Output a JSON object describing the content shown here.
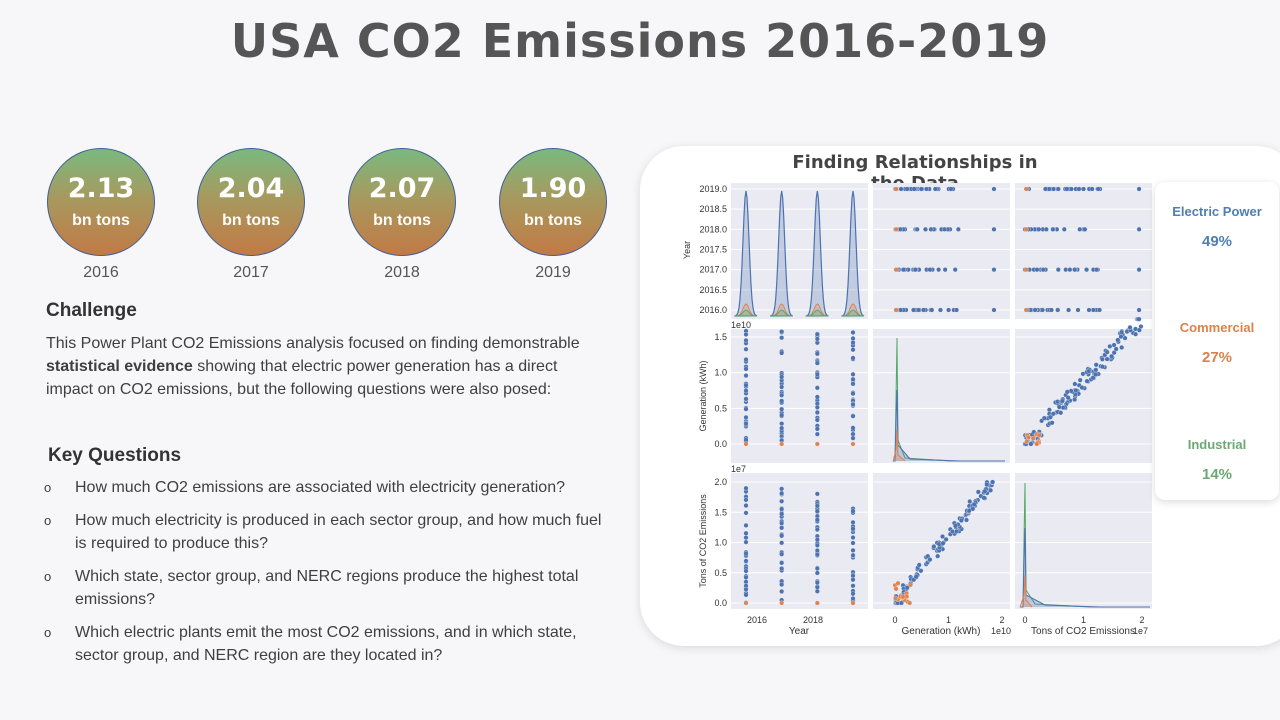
{
  "title": "USA CO2 Emissions 2016-2019",
  "stats": [
    {
      "value": "2.13",
      "unit": "bn tons",
      "year": "2016"
    },
    {
      "value": "2.04",
      "unit": "bn tons",
      "year": "2017"
    },
    {
      "value": "2.07",
      "unit": "bn tons",
      "year": "2018"
    },
    {
      "value": "1.90",
      "unit": "bn tons",
      "year": "2019"
    }
  ],
  "challenge": {
    "heading": "Challenge",
    "text_before": "This Power Plant CO2 Emissions analysis focused on finding demonstrable ",
    "text_bold": "statistical evidence",
    "text_after": " showing that electric power generation has a direct impact on CO2 emissions, but the following questions were also posed:"
  },
  "key_questions": {
    "heading": "Key Questions",
    "bullet": "o",
    "items": [
      "How much CO2 emissions are associated with electricity generation?",
      "How much electricity is produced in each sector group, and how much fuel is required to produce this?",
      "Which state, sector group, and NERC regions produce the highest total emissions?",
      "Which electric plants emit the most CO2 emissions, and in which state, sector group, and NERC region are they located in?"
    ]
  },
  "legend": [
    {
      "name": "Electric Power",
      "pct": "49%",
      "color": "#4c72b0"
    },
    {
      "name": "Commercial",
      "pct": "27%",
      "color": "#dd8452"
    },
    {
      "name": "Industrial",
      "pct": "14%",
      "color": "#55a868"
    }
  ],
  "chart_data": {
    "type": "scatter",
    "title": "Finding Relationships in the Data",
    "variables": [
      "Year",
      "Generation (kWh)",
      "Tons of CO2 Emissions"
    ],
    "series": [
      {
        "name": "Electric Power",
        "color": "#4c72b0"
      },
      {
        "name": "Commercial",
        "color": "#dd8452"
      },
      {
        "name": "Industrial",
        "color": "#55a868"
      }
    ],
    "year_ticks": [
      "2016.0",
      "2016.5",
      "2017.0",
      "2017.5",
      "2018.0",
      "2018.5",
      "2019.0"
    ],
    "year_axis_ticks": [
      "2016",
      "2018"
    ],
    "generation_ticks": [
      "0.0",
      "0.5",
      "1.0",
      "1.5"
    ],
    "generation_axis_ticks": [
      "0",
      "1",
      "2"
    ],
    "emission_ticks": [
      "0.0",
      "0.5",
      "1.0",
      "1.5",
      "2.0"
    ],
    "emission_axis_ticks": [
      "0",
      "1",
      "2"
    ],
    "generation_scale": "1e10",
    "emission_scale": "1e7",
    "generation_range": [
      0,
      1.8
    ],
    "emission_range": [
      0,
      2.0
    ],
    "year_range": [
      2016,
      2019
    ],
    "generation_to_emission_relation": "approximately linear, emissions ≈ 1.08 × generation (scaled units)"
  }
}
